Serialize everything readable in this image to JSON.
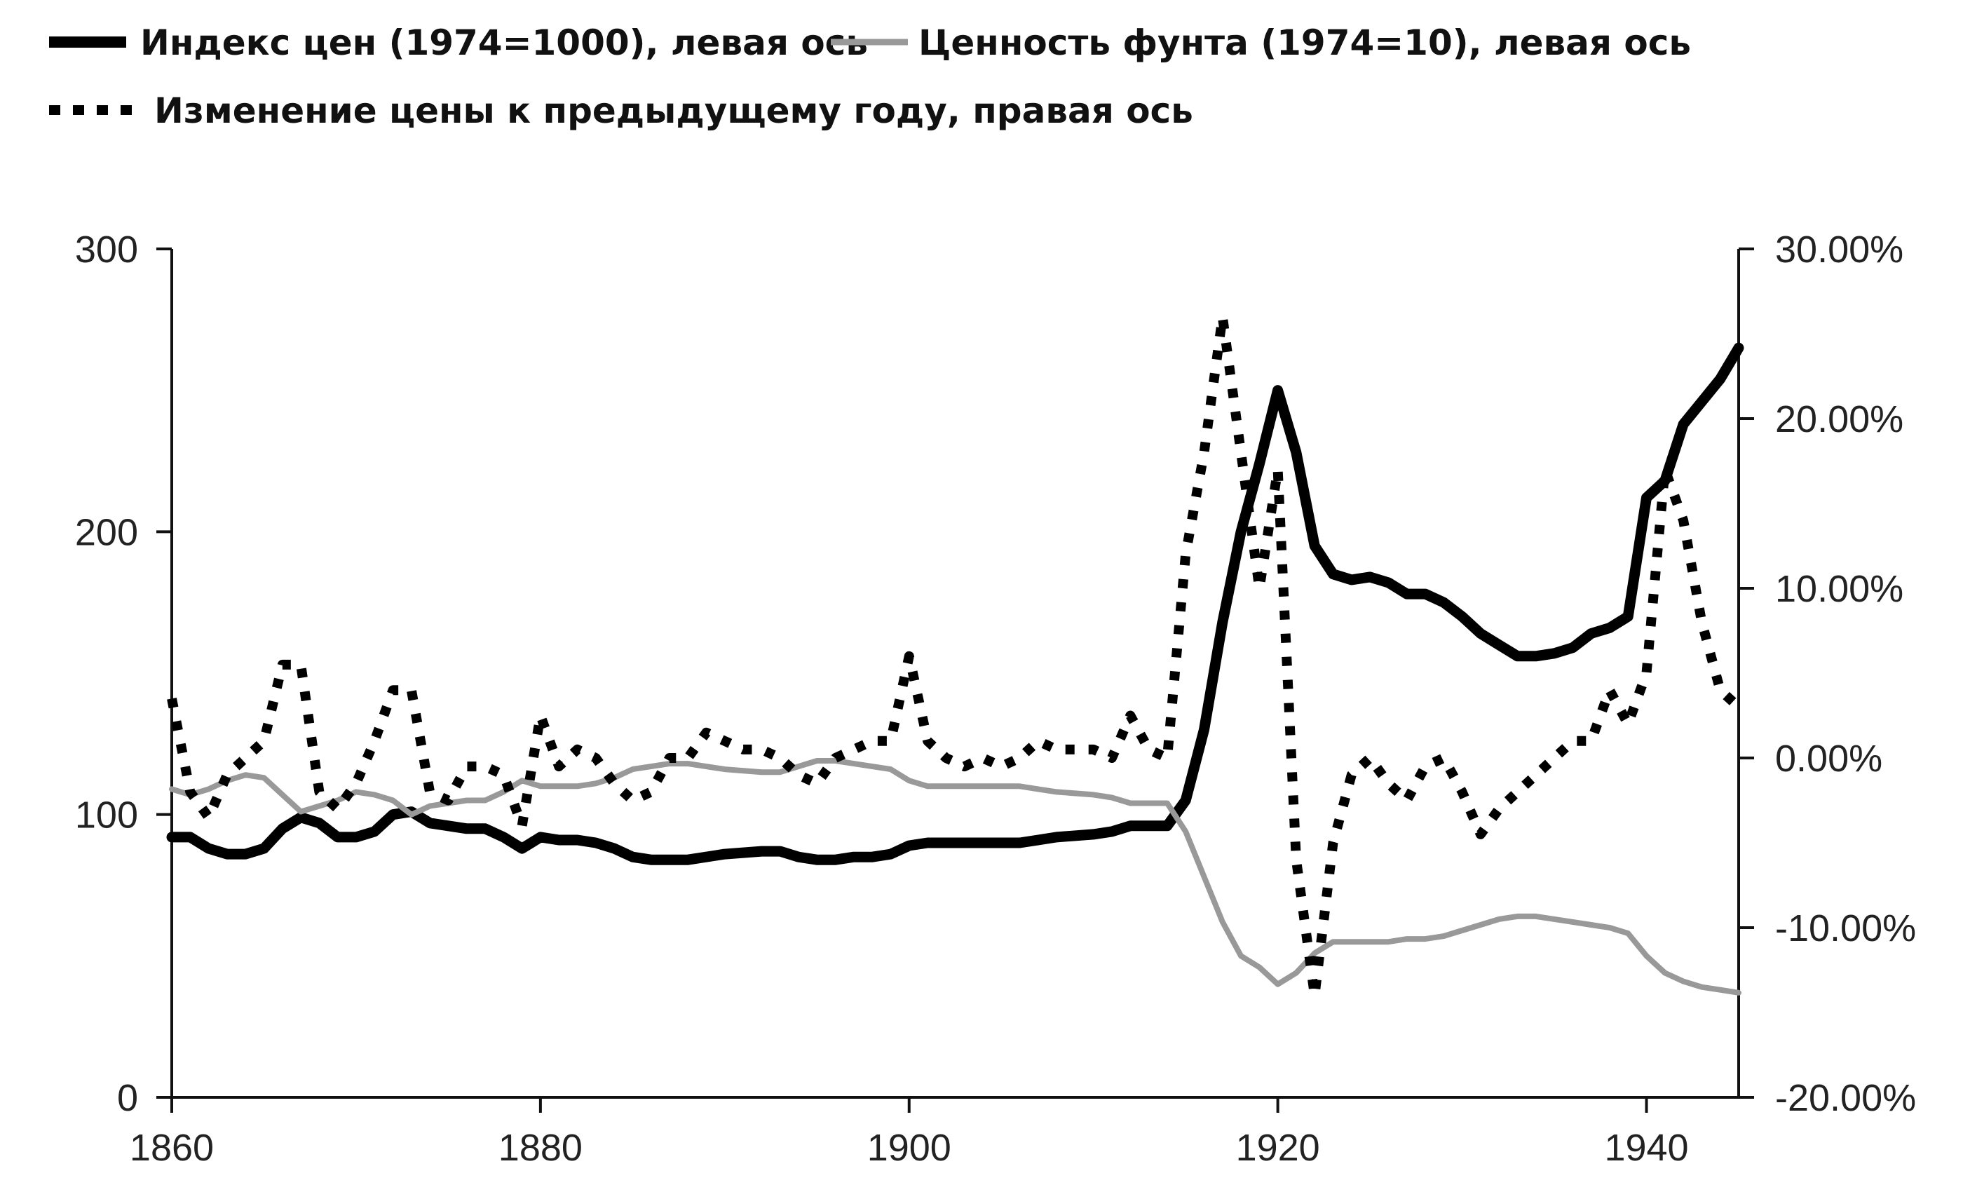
{
  "chart_data": {
    "type": "line",
    "title": "",
    "xlabel": "",
    "ylabel": "",
    "xlim": [
      1860,
      1945
    ],
    "ylim": [
      0,
      300
    ],
    "y2lim": [
      -20,
      30
    ],
    "x_ticks": [
      1860,
      1880,
      1900,
      1920,
      1940
    ],
    "y_ticks": [
      0,
      100,
      200,
      300
    ],
    "y_tick_labels": [
      "0",
      "100",
      "200",
      "300"
    ],
    "y2_ticks": [
      -20,
      -10,
      0,
      10,
      20,
      30
    ],
    "y2_tick_labels": [
      "-20.00%",
      "-10.00%",
      "0.00%",
      "10.00%",
      "20.00%",
      "30.00%"
    ],
    "grid": false,
    "legend_position": "top-left",
    "series": [
      {
        "name": "Индекс цен (1974=1000), левая ось",
        "axis": "left",
        "style": "solid",
        "color": "#000000",
        "x": [
          1860,
          1861,
          1862,
          1863,
          1864,
          1865,
          1866,
          1867,
          1868,
          1869,
          1870,
          1871,
          1872,
          1873,
          1874,
          1875,
          1876,
          1877,
          1878,
          1879,
          1880,
          1881,
          1882,
          1883,
          1884,
          1885,
          1886,
          1888,
          1890,
          1892,
          1893,
          1894,
          1895,
          1896,
          1897,
          1898,
          1899,
          1900,
          1901,
          1905,
          1906,
          1907,
          1908,
          1910,
          1911,
          1912,
          1913,
          1914,
          1915,
          1916,
          1917,
          1918,
          1919,
          1920,
          1921,
          1922,
          1923,
          1924,
          1925,
          1926,
          1927,
          1928,
          1929,
          1930,
          1931,
          1932,
          1933,
          1934,
          1935,
          1936,
          1937,
          1938,
          1939,
          1940,
          1941,
          1942,
          1943,
          1944,
          1945
        ],
        "y": [
          92,
          92,
          88,
          86,
          86,
          88,
          95,
          99,
          97,
          92,
          92,
          94,
          100,
          101,
          97,
          96,
          95,
          95,
          92,
          88,
          92,
          91,
          91,
          90,
          88,
          85,
          84,
          84,
          86,
          87,
          87,
          85,
          84,
          84,
          85,
          85,
          86,
          89,
          90,
          90,
          90,
          91,
          92,
          93,
          94,
          96,
          96,
          96,
          105,
          130,
          168,
          200,
          224,
          250,
          228,
          195,
          185,
          183,
          184,
          182,
          178,
          178,
          175,
          170,
          164,
          160,
          156,
          156,
          157,
          159,
          164,
          166,
          170,
          212,
          218,
          238,
          246,
          254,
          265
        ]
      },
      {
        "name": "Ценность фунта (1974=10), левая ось",
        "axis": "left",
        "style": "solid",
        "color": "#999999",
        "x": [
          1860,
          1861,
          1862,
          1863,
          1864,
          1865,
          1866,
          1867,
          1868,
          1869,
          1870,
          1871,
          1872,
          1873,
          1874,
          1875,
          1876,
          1877,
          1878,
          1879,
          1880,
          1881,
          1882,
          1883,
          1884,
          1885,
          1886,
          1887,
          1888,
          1890,
          1892,
          1893,
          1894,
          1895,
          1896,
          1897,
          1898,
          1899,
          1900,
          1901,
          1905,
          1906,
          1907,
          1908,
          1910,
          1911,
          1912,
          1913,
          1914,
          1915,
          1916,
          1917,
          1918,
          1919,
          1920,
          1921,
          1922,
          1923,
          1924,
          1925,
          1926,
          1927,
          1928,
          1929,
          1930,
          1931,
          1932,
          1933,
          1934,
          1935,
          1936,
          1937,
          1938,
          1939,
          1940,
          1941,
          1942,
          1943,
          1944,
          1945
        ],
        "y": [
          109,
          107,
          109,
          112,
          114,
          113,
          107,
          101,
          103,
          105,
          108,
          107,
          105,
          100,
          103,
          104,
          105,
          105,
          108,
          112,
          110,
          110,
          110,
          111,
          113,
          116,
          117,
          118,
          118,
          116,
          115,
          115,
          117,
          119,
          119,
          118,
          117,
          116,
          112,
          110,
          110,
          110,
          109,
          108,
          107,
          106,
          104,
          104,
          104,
          94,
          78,
          62,
          50,
          46,
          40,
          44,
          51,
          55,
          55,
          55,
          55,
          56,
          56,
          57,
          59,
          61,
          63,
          64,
          64,
          63,
          62,
          61,
          60,
          58,
          50,
          44,
          41,
          39,
          38,
          37
        ]
      },
      {
        "name": "Изменение цены к предыдущему году, правая ось",
        "axis": "right",
        "style": "dotted",
        "color": "#000000",
        "x": [
          1860,
          1861,
          1862,
          1863,
          1864,
          1865,
          1866,
          1867,
          1868,
          1869,
          1870,
          1871,
          1872,
          1873,
          1874,
          1875,
          1876,
          1877,
          1878,
          1879,
          1880,
          1881,
          1882,
          1883,
          1884,
          1885,
          1886,
          1887,
          1888,
          1889,
          1890,
          1891,
          1892,
          1893,
          1894,
          1895,
          1896,
          1897,
          1898,
          1899,
          1900,
          1901,
          1902,
          1903,
          1904,
          1905,
          1906,
          1907,
          1908,
          1909,
          1910,
          1911,
          1912,
          1913,
          1914,
          1915,
          1916,
          1917,
          1918,
          1919,
          1920,
          1921,
          1922,
          1923,
          1924,
          1925,
          1926,
          1927,
          1928,
          1929,
          1930,
          1931,
          1932,
          1933,
          1934,
          1935,
          1936,
          1937,
          1938,
          1939,
          1940,
          1941,
          1942,
          1943,
          1944,
          1945
        ],
        "y": [
          3.5,
          -2.0,
          -3.5,
          -1.0,
          0.0,
          1.0,
          5.5,
          5.5,
          -2.0,
          -3.0,
          -1.5,
          1.0,
          4.0,
          4.0,
          -2.0,
          -2.5,
          -0.5,
          -0.5,
          -1.0,
          -4.0,
          2.5,
          -0.5,
          0.5,
          0.0,
          -1.5,
          -2.5,
          -2.0,
          0.0,
          0.0,
          1.5,
          1.0,
          0.5,
          0.5,
          0.0,
          -1.0,
          -1.5,
          0.0,
          0.5,
          1.0,
          1.0,
          6.0,
          1.0,
          0.0,
          -0.5,
          0.0,
          -0.5,
          0.0,
          1.0,
          0.5,
          0.5,
          0.5,
          0.0,
          2.5,
          0.5,
          0.0,
          12.0,
          18.0,
          26.0,
          18.0,
          10.0,
          17.0,
          -6.0,
          -14.0,
          -5.0,
          -1.0,
          0.0,
          -1.5,
          -2.5,
          -0.5,
          0.0,
          -2.0,
          -4.5,
          -3.0,
          -2.0,
          -1.0,
          0.0,
          1.0,
          1.0,
          4.0,
          2.0,
          5.0,
          17.0,
          14.0,
          8.0,
          4.0,
          3.0
        ]
      }
    ]
  }
}
